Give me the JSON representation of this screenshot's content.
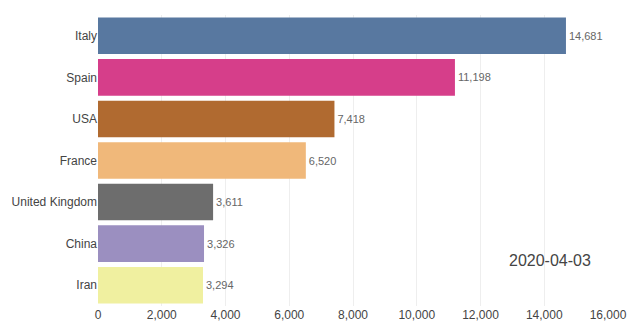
{
  "chart_data": {
    "type": "bar",
    "orientation": "horizontal",
    "categories": [
      "Italy",
      "Spain",
      "USA",
      "France",
      "United Kingdom",
      "China",
      "Iran"
    ],
    "values": [
      14681,
      11198,
      7418,
      6520,
      3611,
      3326,
      3294
    ],
    "value_labels": [
      "14,681",
      "11,198",
      "7,418",
      "6,520",
      "3,611",
      "3,326",
      "3,294"
    ],
    "data_labels": true,
    "colors": [
      "#5878a0",
      "#d63e8a",
      "#b06a30",
      "#f0b87a",
      "#6d6d6d",
      "#9b8fc0",
      "#f0f0a0"
    ],
    "xlim": [
      0,
      16000
    ],
    "xticks": [
      0,
      {
        "value": 2000,
        "label": "2,000"
      },
      {
        "value": 4000,
        "label": "4,000"
      },
      {
        "value": 6000,
        "label": "6,000"
      },
      {
        "value": 8000,
        "label": "8,000"
      },
      {
        "value": 10000,
        "label": "10,000"
      },
      {
        "value": 12000,
        "label": "12,000"
      },
      {
        "value": 14000,
        "label": "14,000"
      },
      {
        "value": 16000,
        "label": "16,000"
      }
    ],
    "grid": true,
    "annotations": [
      "2020-04-03"
    ]
  }
}
